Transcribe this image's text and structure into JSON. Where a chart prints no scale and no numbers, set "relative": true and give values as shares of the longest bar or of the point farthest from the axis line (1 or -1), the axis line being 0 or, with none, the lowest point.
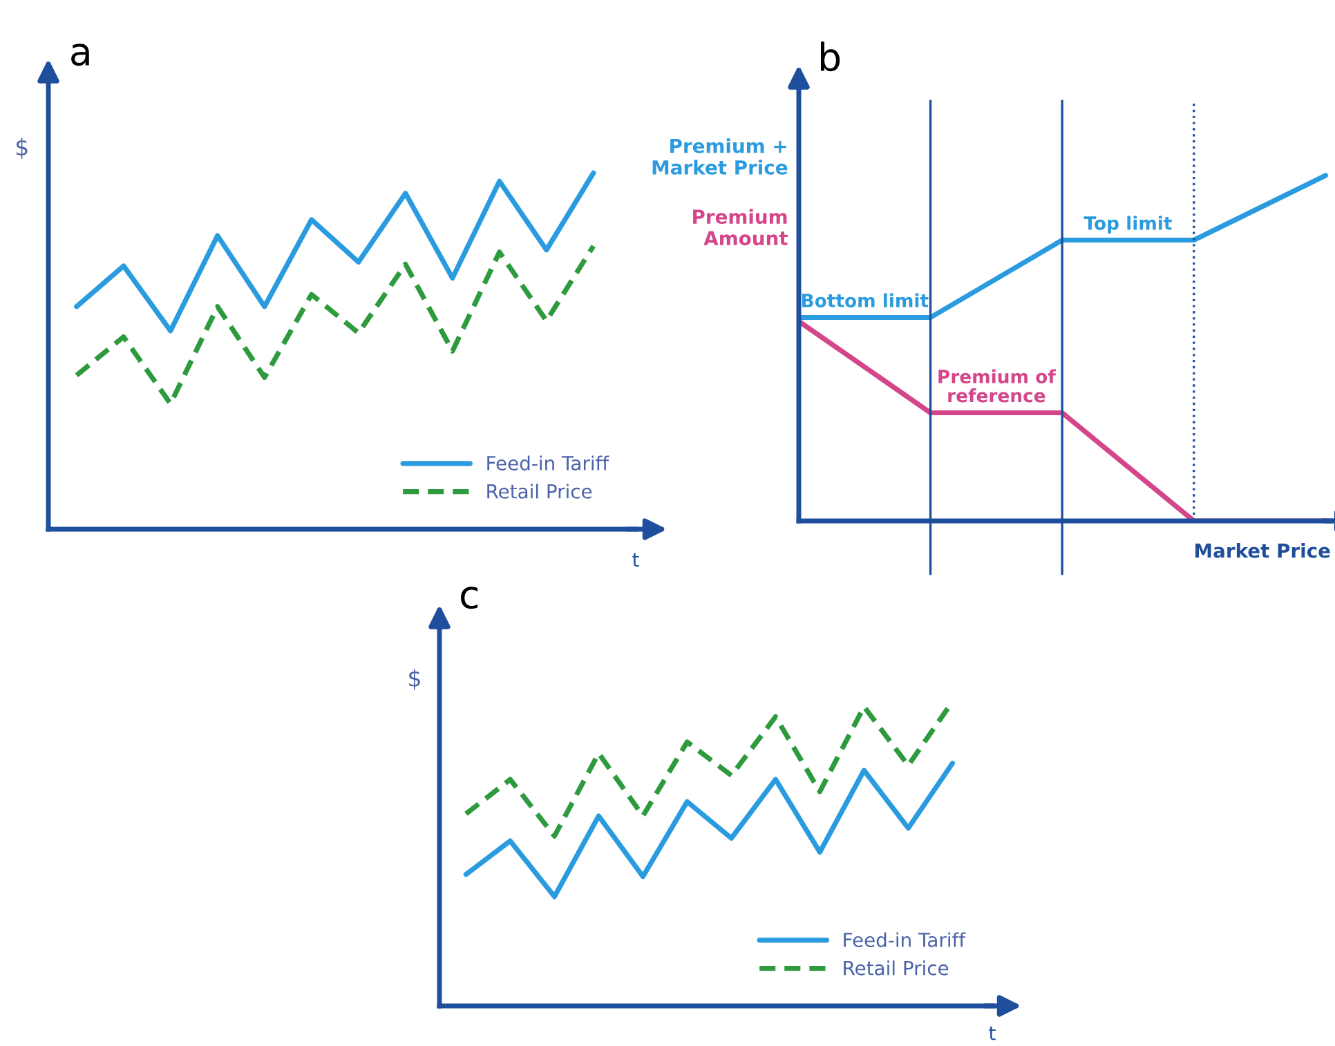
{
  "chart_data": [
    {
      "type": "line",
      "title": "a",
      "ylabel": "$",
      "xlabel": "t",
      "relative": true,
      "legend": "bottom right",
      "marker": "none",
      "categories": [
        null,
        null,
        null,
        null,
        null,
        null,
        null,
        null,
        null,
        null,
        null,
        null
      ],
      "series": [
        {
          "name": "Feed-in Tariff",
          "color": "#2b9be0",
          "line_style": "solid",
          "values": [
            0.625,
            0.739,
            0.557,
            0.824,
            0.625,
            0.869,
            0.75,
            0.943,
            0.705,
            0.977,
            0.784,
            1.0
          ]
        },
        {
          "name": "Retail Price",
          "color": "#2e9a3e",
          "line_style": "dashed",
          "values": [
            0.432,
            0.54,
            0.352,
            0.625,
            0.426,
            0.659,
            0.551,
            0.744,
            0.5,
            0.778,
            0.585,
            0.795
          ]
        }
      ]
    },
    {
      "type": "line",
      "title": "b",
      "xlabel": "Market Price",
      "relative": true,
      "legend": false,
      "marker": "none",
      "categories": [
        null,
        null,
        null,
        null,
        null
      ],
      "series": [
        {
          "name": "Premium +\nMarket Price",
          "color": "#2b9be0",
          "line_style": "solid",
          "values": [
            0.589,
            0.589,
            0.813,
            0.813,
            1.0
          ]
        },
        {
          "name": "Premium\nAmount",
          "color": "#d4458a",
          "line_style": "solid",
          "values": [
            0.578,
            0.313,
            0.313,
            0,
            0
          ]
        }
      ],
      "annotations": [
        "Bottom limit",
        "Top limit",
        "Premium of\nreference"
      ]
    },
    {
      "type": "line",
      "title": "c",
      "ylabel": "$",
      "xlabel": "t",
      "relative": true,
      "legend": "bottom right",
      "marker": "none",
      "categories": [
        null,
        null,
        null,
        null,
        null,
        null,
        null,
        null,
        null,
        null,
        null,
        null
      ],
      "series": [
        {
          "name": "Feed-in Tariff",
          "color": "#2b9be0",
          "line_style": "solid",
          "values": [
            0.432,
            0.542,
            0.359,
            0.624,
            0.425,
            0.671,
            0.551,
            0.744,
            0.505,
            0.774,
            0.584,
            0.797
          ]
        },
        {
          "name": "Retail Price",
          "color": "#2e9a3e",
          "line_style": "dashed",
          "values": [
            0.631,
            0.744,
            0.558,
            0.83,
            0.624,
            0.867,
            0.757,
            0.95,
            0.704,
            0.983,
            0.79,
            1.0
          ]
        }
      ]
    }
  ]
}
